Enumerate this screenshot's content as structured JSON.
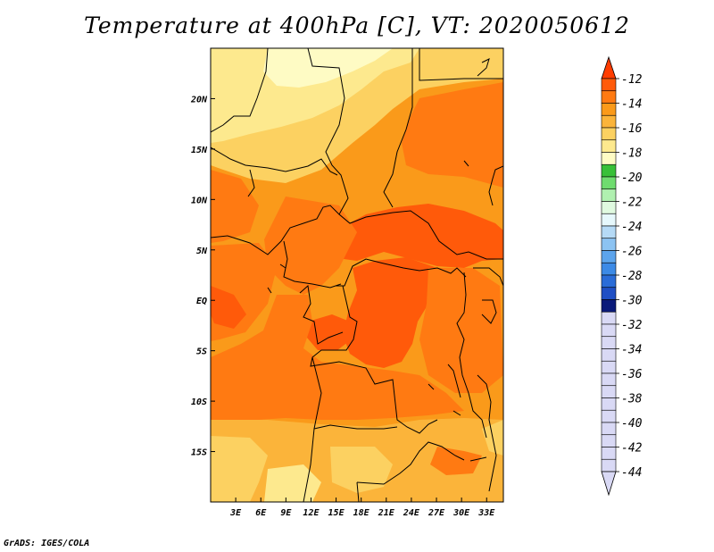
{
  "title": "Temperature at 400hPa [C], VT: 2020050612",
  "footer": "GrADS: IGES/COLA",
  "map": {
    "lon_range": [
      0,
      35
    ],
    "lat_range": [
      -20,
      25
    ],
    "lon_ticks": [
      "3E",
      "6E",
      "9E",
      "12E",
      "15E",
      "18E",
      "21E",
      "24E",
      "27E",
      "30E",
      "33E"
    ],
    "lat_ticks": [
      "20N",
      "15N",
      "10N",
      "5N",
      "EQ",
      "5S",
      "10S",
      "15S"
    ]
  },
  "colorbar": {
    "labels": [
      "-12",
      "-14",
      "-16",
      "-18",
      "-20",
      "-22",
      "-24",
      "-26",
      "-28",
      "-30",
      "-32",
      "-34",
      "-36",
      "-38",
      "-40",
      "-42",
      "-44"
    ],
    "colors": [
      "#ff5a0a",
      "#ff7a12",
      "#fa9a1a",
      "#fbb43a",
      "#fcd161",
      "#fde98e",
      "#fefbc4",
      "#38c038",
      "#6fdc6f",
      "#b0f0b0",
      "#e0fae0",
      "#e6f8fc",
      "#b5daf6",
      "#8cc3f2",
      "#5ca4ec",
      "#3c8ae6",
      "#2a6cd8",
      "#1f4fc4",
      "#0a1a7a",
      "#d9d9f5"
    ],
    "top_color": "#ff3c00",
    "bottom_color": "#d9d9f5"
  }
}
